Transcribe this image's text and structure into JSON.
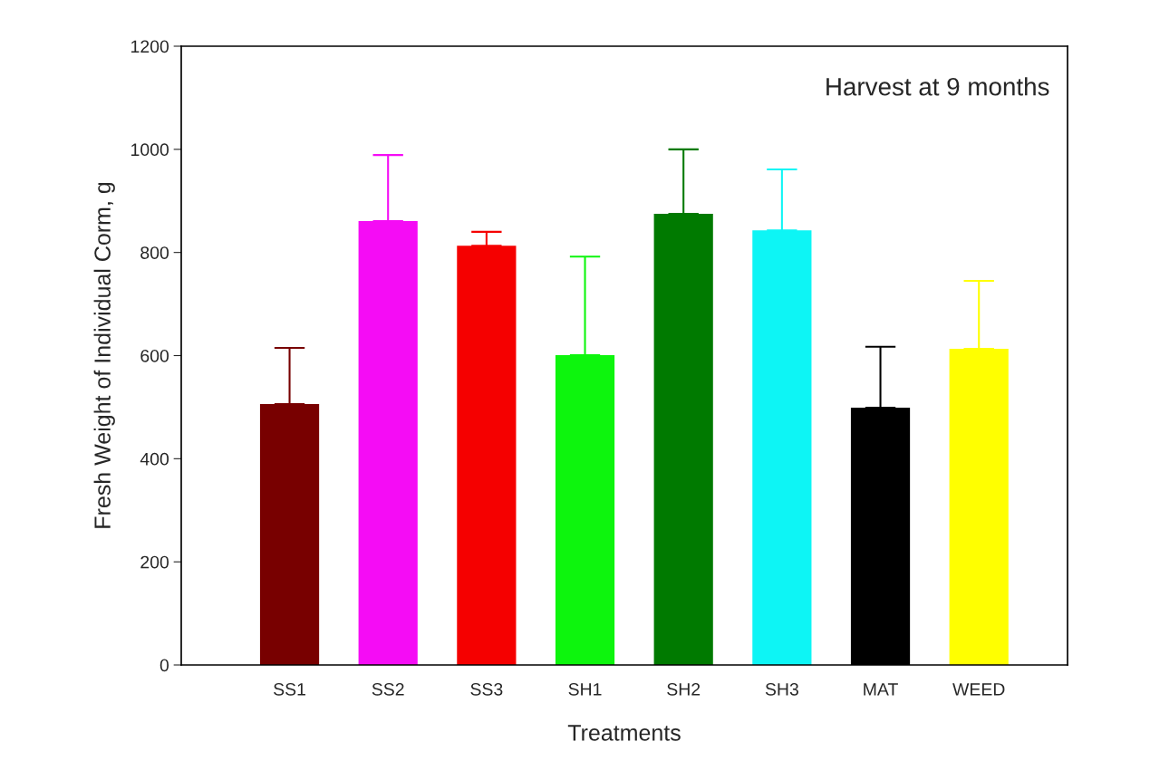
{
  "chart_data": {
    "type": "bar",
    "xlabel": "Treatments",
    "ylabel": "Fresh Weight of Individual Corm, g",
    "annotations": [
      "Harvest at 9 months"
    ],
    "categories": [
      "SS1",
      "SS2",
      "SS3",
      "SH1",
      "SH2",
      "SH3",
      "MAT",
      "WEED"
    ],
    "values": [
      506,
      861,
      813,
      601,
      875,
      843,
      499,
      613
    ],
    "colors": [
      "#780000",
      "#f50cf5",
      "#f50000",
      "#0df50d",
      "#007a00",
      "#0df5f5",
      "#000000",
      "#ffff00"
    ],
    "errors": [
      [
        506,
        615
      ],
      [
        861,
        989
      ],
      [
        813,
        840
      ],
      [
        601,
        792
      ],
      [
        875,
        1000
      ],
      [
        843,
        961
      ],
      [
        499,
        617
      ],
      [
        613,
        745
      ]
    ],
    "ylim": [
      0,
      1200
    ],
    "yticks": [
      0,
      200,
      400,
      600,
      800,
      1000,
      1200
    ],
    "grid": false,
    "legend": false
  }
}
